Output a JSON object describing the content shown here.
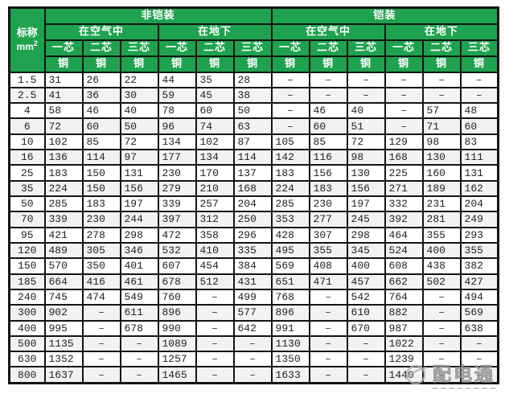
{
  "table": {
    "corner": {
      "title": "标称",
      "unit_base": "mm",
      "unit_exp": "2"
    },
    "groups": [
      "非铠装",
      "铠装"
    ],
    "subgroups": [
      "在空气中",
      "在地下"
    ],
    "core_labels": [
      "一芯",
      "二芯",
      "三芯"
    ],
    "conductor": "铜",
    "rows": [
      {
        "size": "1.5",
        "values": [
          "31",
          "26",
          "22",
          "44",
          "35",
          "28",
          "–",
          "–",
          "–",
          "–",
          "–",
          "–"
        ]
      },
      {
        "size": "2.5",
        "values": [
          "41",
          "36",
          "30",
          "59",
          "45",
          "38",
          "–",
          "–",
          "–",
          "–",
          "–",
          "–"
        ]
      },
      {
        "size": "4",
        "values": [
          "58",
          "46",
          "40",
          "78",
          "60",
          "50",
          "–",
          "46",
          "40",
          "–",
          "57",
          "48"
        ]
      },
      {
        "size": "6",
        "values": [
          "72",
          "60",
          "50",
          "96",
          "74",
          "63",
          "–",
          "60",
          "51",
          "–",
          "71",
          "60"
        ]
      },
      {
        "size": "10",
        "values": [
          "102",
          "85",
          "72",
          "134",
          "102",
          "87",
          "105",
          "85",
          "72",
          "129",
          "98",
          "83"
        ]
      },
      {
        "size": "16",
        "values": [
          "136",
          "114",
          "97",
          "177",
          "134",
          "114",
          "142",
          "116",
          "98",
          "168",
          "130",
          "111"
        ]
      },
      {
        "size": "25",
        "values": [
          "183",
          "150",
          "131",
          "230",
          "170",
          "137",
          "183",
          "156",
          "130",
          "225",
          "160",
          "131"
        ]
      },
      {
        "size": "35",
        "values": [
          "224",
          "150",
          "156",
          "279",
          "210",
          "168",
          "224",
          "183",
          "156",
          "271",
          "189",
          "162"
        ]
      },
      {
        "size": "50",
        "values": [
          "285",
          "183",
          "197",
          "339",
          "257",
          "204",
          "285",
          "230",
          "197",
          "332",
          "231",
          "204"
        ]
      },
      {
        "size": "70",
        "values": [
          "339",
          "230",
          "244",
          "397",
          "312",
          "250",
          "353",
          "277",
          "245",
          "392",
          "281",
          "249"
        ]
      },
      {
        "size": "95",
        "values": [
          "421",
          "278",
          "298",
          "472",
          "358",
          "296",
          "428",
          "307",
          "298",
          "464",
          "355",
          "293"
        ]
      },
      {
        "size": "120",
        "values": [
          "489",
          "305",
          "346",
          "532",
          "410",
          "335",
          "495",
          "355",
          "345",
          "524",
          "400",
          "355"
        ]
      },
      {
        "size": "150",
        "values": [
          "570",
          "350",
          "401",
          "607",
          "454",
          "384",
          "569",
          "408",
          "400",
          "608",
          "438",
          "382"
        ]
      },
      {
        "size": "185",
        "values": [
          "664",
          "416",
          "461",
          "678",
          "512",
          "431",
          "651",
          "471",
          "457",
          "662",
          "502",
          "427"
        ]
      },
      {
        "size": "240",
        "values": [
          "745",
          "474",
          "549",
          "760",
          "–",
          "499",
          "768",
          "–",
          "542",
          "764",
          "–",
          "494"
        ]
      },
      {
        "size": "300",
        "values": [
          "902",
          "–",
          "611",
          "896",
          "–",
          "577",
          "896",
          "–",
          "610",
          "882",
          "–",
          "569"
        ]
      },
      {
        "size": "400",
        "values": [
          "995",
          "–",
          "678",
          "990",
          "–",
          "642",
          "991",
          "–",
          "670",
          "987",
          "–",
          "638"
        ]
      },
      {
        "size": "500",
        "values": [
          "1135",
          "–",
          "–",
          "1089",
          "–",
          "–",
          "1130",
          "–",
          "–",
          "1022",
          "–",
          "–"
        ]
      },
      {
        "size": "630",
        "values": [
          "1352",
          "–",
          "–",
          "1257",
          "–",
          "–",
          "1350",
          "–",
          "–",
          "1239",
          "–",
          "–"
        ]
      },
      {
        "size": "800",
        "values": [
          "1637",
          "–",
          "–",
          "1465",
          "–",
          "–",
          "1633",
          "–",
          "–",
          "1440",
          "–",
          "–"
        ]
      }
    ]
  },
  "watermark": {
    "text": "配电通"
  },
  "colors": {
    "header_green": "#1fa24f",
    "border": "#141414",
    "row_alt": "#f2f2f2",
    "watermark_gray": "#9a9a9a"
  }
}
